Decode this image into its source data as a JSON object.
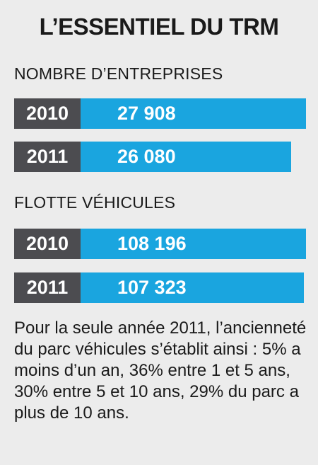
{
  "title": "L’ESSENTIEL DU TRM",
  "chart_data": [
    {
      "type": "bar",
      "title": "NOMBRE D’ENTREPRISES",
      "categories": [
        "2010",
        "2011"
      ],
      "values": [
        27908,
        26080
      ],
      "value_labels": [
        "27 908",
        "26 080"
      ]
    },
    {
      "type": "bar",
      "title": "FLOTTE VÉHICULES",
      "categories": [
        "2010",
        "2011"
      ],
      "values": [
        108196,
        107323
      ],
      "value_labels": [
        "108 196",
        "107 323"
      ]
    }
  ],
  "colors": {
    "bar": "#1aa5df",
    "year_box": "#4c4c50",
    "background": "#ececec"
  },
  "note": "Pour la seule année 2011, l’ancienneté  du parc véhicules s’établit ainsi : 5% a moins d’un an, 36% entre 1 et 5 ans, 30% entre 5 et 10 ans, 29% du parc a plus de 10 ans."
}
